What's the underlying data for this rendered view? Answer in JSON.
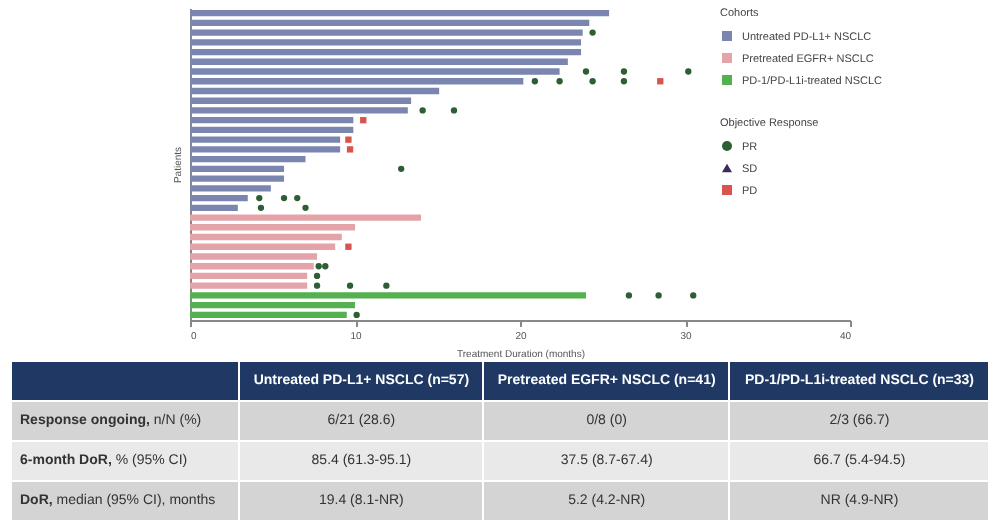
{
  "chart_data": {
    "type": "bar",
    "orientation": "horizontal",
    "xlabel": "Treatment Duration (months)",
    "ylabel": "Patients",
    "legend_title": "Cohorts",
    "legend": "top right",
    "tick_labels": "x",
    "xlim": [
      0,
      40
    ],
    "xticks": [
      0,
      10,
      20,
      30,
      40
    ],
    "categories": [
      null,
      null,
      null,
      null,
      null,
      null,
      null,
      null,
      null,
      null,
      null,
      null,
      null,
      null,
      null,
      null,
      null,
      null,
      null,
      null,
      null,
      null,
      null,
      null,
      null,
      null,
      null,
      null,
      null,
      null,
      null,
      null
    ],
    "series": [
      {
        "name": "Untreated PD-L1+ NSCLC",
        "color": "#7b86b0",
        "values": [
          25.4,
          24.2,
          23.8,
          23.7,
          23.7,
          22.9,
          22.4,
          20.2,
          15.1,
          13.4,
          13.2,
          9.9,
          9.9,
          9.1,
          9.1,
          7.0,
          5.7,
          5.7,
          4.9,
          3.5,
          2.9,
          null,
          null,
          null,
          null,
          null,
          null,
          null,
          null,
          null,
          null,
          null
        ]
      },
      {
        "name": "Pretreated EGFR+ NSCLC",
        "color": "#e3a3a8",
        "values": [
          null,
          null,
          null,
          null,
          null,
          null,
          null,
          null,
          null,
          null,
          null,
          null,
          null,
          null,
          null,
          null,
          null,
          null,
          null,
          null,
          null,
          14.0,
          10.0,
          9.2,
          8.8,
          7.7,
          7.5,
          7.1,
          7.1,
          null,
          null,
          null
        ]
      },
      {
        "name": "PD-1/PD-L1i-treated NSCLC",
        "color": "#55b04f",
        "values": [
          null,
          null,
          null,
          null,
          null,
          null,
          null,
          null,
          null,
          null,
          null,
          null,
          null,
          null,
          null,
          null,
          null,
          null,
          null,
          null,
          null,
          null,
          null,
          null,
          null,
          null,
          null,
          null,
          null,
          24.0,
          10.0,
          9.5
        ]
      },
      {
        "type": "scatter",
        "name": "PR",
        "color": "#2e5e33",
        "marker": "circle",
        "values": [
          null,
          null,
          24.4,
          null,
          null,
          null,
          24.0,
          20.9,
          null,
          null,
          14.1,
          null,
          null,
          null,
          null,
          null,
          12.8,
          null,
          null,
          4.2,
          4.3,
          null,
          null,
          null,
          null,
          null,
          7.8,
          7.7,
          7.7,
          26.6,
          null,
          10.1
        ]
      },
      {
        "type": "scatter",
        "color": "#2e5e33",
        "marker": "circle",
        "values": [
          null,
          null,
          null,
          null,
          null,
          null,
          26.3,
          22.4,
          null,
          null,
          16.0,
          null,
          null,
          null,
          null,
          null,
          null,
          null,
          null,
          5.7,
          7.0,
          null,
          null,
          null,
          null,
          null,
          8.2,
          null,
          9.7,
          28.4,
          null,
          null
        ]
      },
      {
        "type": "scatter",
        "color": "#2e5e33",
        "marker": "circle",
        "values": [
          null,
          null,
          null,
          null,
          null,
          null,
          30.2,
          24.4,
          null,
          null,
          null,
          null,
          null,
          null,
          null,
          null,
          null,
          null,
          null,
          6.5,
          null,
          null,
          null,
          null,
          null,
          null,
          null,
          null,
          11.9,
          30.5,
          null,
          null
        ]
      },
      {
        "type": "scatter",
        "color": "#2e5e33",
        "marker": "circle",
        "values": [
          null,
          null,
          null,
          null,
          null,
          null,
          null,
          26.3,
          null,
          null,
          null,
          null,
          null,
          null,
          null,
          null,
          null,
          null,
          null,
          null,
          null,
          null,
          null,
          null,
          null,
          null,
          null,
          null,
          null,
          null,
          null,
          null
        ]
      },
      {
        "type": "scatter",
        "name": "SD",
        "color": "#3d2a5e",
        "marker": "triangle",
        "values": [
          null,
          null,
          null,
          null,
          null,
          null,
          null,
          null,
          null,
          null,
          null,
          null,
          null,
          null,
          null,
          null,
          null,
          null,
          null,
          null,
          null,
          null,
          null,
          null,
          null,
          null,
          null,
          null,
          null,
          null,
          null,
          null
        ]
      },
      {
        "type": "scatter",
        "name": "PD",
        "color": "#d9534f",
        "marker": "square",
        "values": [
          null,
          null,
          null,
          null,
          null,
          null,
          null,
          28.5,
          null,
          null,
          null,
          10.5,
          null,
          9.6,
          9.7,
          null,
          null,
          null,
          null,
          null,
          null,
          null,
          null,
          null,
          9.6,
          null,
          null,
          null,
          null,
          null,
          null,
          null
        ]
      }
    ],
    "annotations": [
      "Objective Response",
      "Untreated PD-L1+ NSCLC (n=57)",
      "Pretreated EGFR+ NSCLC (n=41)",
      "PD-1/PD-L1i-treated NSCLC (n=33)",
      "Response ongoing, n/N (%)",
      "6/21 (28.6)",
      "0/8 (0)",
      "2/3 (66.7)",
      "6-month DoR, % (95% CI)",
      "85.4 (61.3-95.1)",
      "37.5 (8.7-67.4)",
      "66.7 (5.4-94.5)",
      "DoR, median (95% CI), months",
      "19.4 (8.1-NR)",
      "5.2 (4.2-NR)",
      "NR (4.9-NR)"
    ]
  }
}
